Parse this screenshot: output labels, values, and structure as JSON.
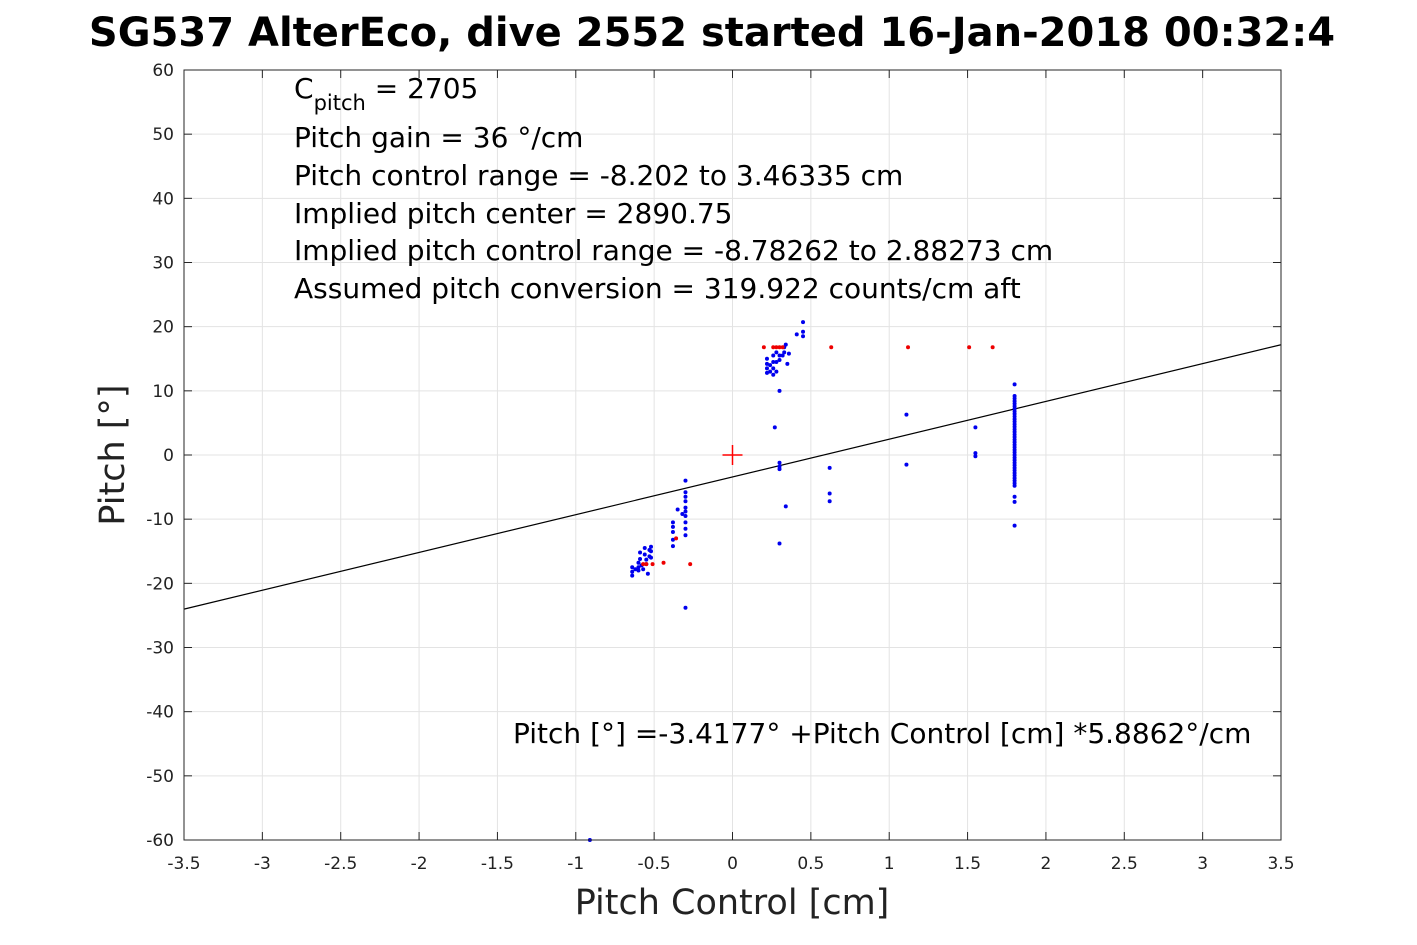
{
  "chart_data": {
    "type": "scatter",
    "title": "SG537 AlterEco, dive 2552 started 16-Jan-2018 00:32:4",
    "xlabel": "Pitch Control [cm]",
    "ylabel": "Pitch [°]",
    "xlim": [
      -3.5,
      3.5
    ],
    "ylim": [
      -60,
      60
    ],
    "xticks": [
      "-3.5",
      "-3",
      "-2.5",
      "-2",
      "-1.5",
      "-1",
      "-0.5",
      "0",
      "0.5",
      "1",
      "1.5",
      "2",
      "2.5",
      "3",
      "3.5"
    ],
    "yticks": [
      "60",
      "50",
      "40",
      "30",
      "20",
      "10",
      "0",
      "-10",
      "-20",
      "-30",
      "-40",
      "-50",
      "-60"
    ],
    "grid": true,
    "annotation": {
      "c_pitch_base": "C",
      "c_pitch_sub": "pitch",
      "c_pitch_rest": " = 2705",
      "lines": [
        "Pitch gain = 36 °/cm",
        "Pitch control range = -8.202 to 3.46335 cm",
        "Implied pitch center = 2890.75",
        "Implied pitch control range = -8.78262 to 2.88273 cm",
        "Assumed pitch conversion = 319.922 counts/cm aft"
      ]
    },
    "fit_text": "Pitch [°] =-3.4177° +Pitch Control [cm] *5.8862°/cm",
    "fit": {
      "intercept": -3.4177,
      "slope": 5.8862,
      "color": "#000000"
    },
    "center_marker": {
      "x": 0,
      "y": 0,
      "color": "#ff0000"
    },
    "series": [
      {
        "color": "#0000ee",
        "points": [
          [
            -0.64,
            -17.5
          ],
          [
            -0.64,
            -18.2
          ],
          [
            -0.64,
            -18.8
          ],
          [
            -0.62,
            -17.8
          ],
          [
            -0.6,
            -16.8
          ],
          [
            -0.6,
            -17.5
          ],
          [
            -0.6,
            -18.0
          ],
          [
            -0.59,
            -15.2
          ],
          [
            -0.59,
            -16.2
          ],
          [
            -0.58,
            -17.2
          ],
          [
            -0.57,
            -17.8
          ],
          [
            -0.56,
            -14.5
          ],
          [
            -0.56,
            -15.5
          ],
          [
            -0.55,
            -16.3
          ],
          [
            -0.55,
            -17.0
          ],
          [
            -0.54,
            -18.5
          ],
          [
            -0.53,
            -14.8
          ],
          [
            -0.53,
            -15.8
          ],
          [
            -0.52,
            -14.3
          ],
          [
            -0.52,
            -15.0
          ],
          [
            -0.52,
            -16.0
          ],
          [
            -0.38,
            -10.5
          ],
          [
            -0.38,
            -11.2
          ],
          [
            -0.38,
            -12.0
          ],
          [
            -0.38,
            -13.2
          ],
          [
            -0.38,
            -14.2
          ],
          [
            -0.35,
            -8.5
          ],
          [
            -0.3,
            -4.0
          ],
          [
            -0.3,
            -5.8
          ],
          [
            -0.3,
            -6.5
          ],
          [
            -0.3,
            -7.2
          ],
          [
            -0.3,
            -8.2
          ],
          [
            -0.3,
            -8.8
          ],
          [
            -0.3,
            -9.5
          ],
          [
            -0.3,
            -10.5
          ],
          [
            -0.3,
            -11.5
          ],
          [
            -0.3,
            -12.5
          ],
          [
            -0.3,
            -23.8
          ],
          [
            -0.32,
            -9.2
          ],
          [
            0.22,
            12.8
          ],
          [
            0.22,
            13.5
          ],
          [
            0.22,
            14.2
          ],
          [
            0.22,
            15.0
          ],
          [
            0.24,
            13.0
          ],
          [
            0.24,
            14.0
          ],
          [
            0.26,
            12.5
          ],
          [
            0.26,
            13.5
          ],
          [
            0.26,
            14.5
          ],
          [
            0.26,
            15.5
          ],
          [
            0.28,
            13.0
          ],
          [
            0.28,
            14.5
          ],
          [
            0.28,
            16.0
          ],
          [
            0.3,
            14.8
          ],
          [
            0.3,
            15.5
          ],
          [
            0.32,
            15.5
          ],
          [
            0.33,
            16.0
          ],
          [
            0.33,
            16.8
          ],
          [
            0.34,
            17.2
          ],
          [
            0.35,
            14.2
          ],
          [
            0.36,
            15.8
          ],
          [
            0.41,
            18.8
          ],
          [
            0.45,
            18.5
          ],
          [
            0.45,
            19.2
          ],
          [
            0.45,
            20.7
          ],
          [
            0.27,
            4.3
          ],
          [
            0.3,
            10.0
          ],
          [
            0.3,
            -1.2
          ],
          [
            0.3,
            -1.8
          ],
          [
            0.3,
            -2.2
          ],
          [
            0.3,
            -13.8
          ],
          [
            0.34,
            -8.0
          ],
          [
            0.62,
            -2.0
          ],
          [
            0.62,
            -6.0
          ],
          [
            0.62,
            -7.2
          ],
          [
            1.11,
            6.3
          ],
          [
            1.11,
            -1.5
          ],
          [
            1.55,
            4.3
          ],
          [
            1.55,
            -0.2
          ],
          [
            1.55,
            0.3
          ],
          [
            -0.91,
            -60.0
          ]
        ]
      },
      {
        "color": "#ee0000",
        "points": [
          [
            -0.57,
            -17.0
          ],
          [
            -0.55,
            -17.0
          ],
          [
            -0.51,
            -17.0
          ],
          [
            -0.44,
            -16.8
          ],
          [
            -0.36,
            -13.0
          ],
          [
            -0.27,
            -17.0
          ],
          [
            0.2,
            16.8
          ],
          [
            0.26,
            16.8
          ],
          [
            0.28,
            16.8
          ],
          [
            0.3,
            16.8
          ],
          [
            0.32,
            16.8
          ],
          [
            0.63,
            16.8
          ],
          [
            1.12,
            16.8
          ],
          [
            1.51,
            16.8
          ],
          [
            1.66,
            16.8
          ]
        ]
      }
    ],
    "vertical_cluster": {
      "x": 1.8,
      "y_from": -4.8,
      "y_to": 9.5,
      "step": 0.4,
      "extra_y": [
        11.0,
        -6.5,
        -7.3,
        -11.0
      ],
      "color": "#0000ee"
    }
  }
}
